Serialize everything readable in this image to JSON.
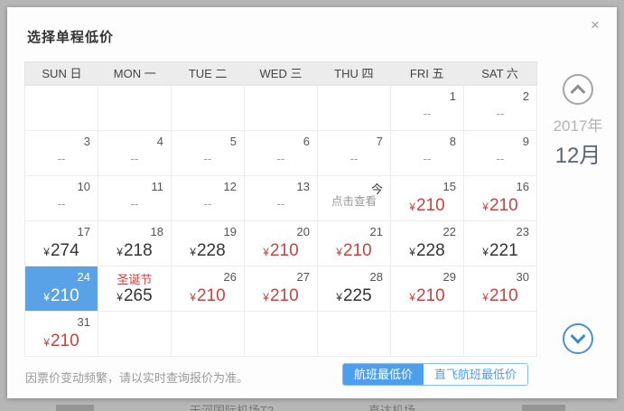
{
  "dialog": {
    "title": "选择单程低价",
    "close_icon": "×"
  },
  "calendar": {
    "day_headers": [
      "SUN 日",
      "MON 一",
      "TUE 二",
      "WED 三",
      "THU 四",
      "FRI 五",
      "SAT 六"
    ],
    "weeks": [
      [
        {
          "style": "empty"
        },
        {
          "style": "empty"
        },
        {
          "style": "empty"
        },
        {
          "style": "empty"
        },
        {
          "style": "empty"
        },
        {
          "day": "1",
          "value": "--",
          "style": "dash"
        },
        {
          "day": "2",
          "value": "--",
          "style": "dash"
        }
      ],
      [
        {
          "day": "3",
          "value": "--",
          "style": "dash"
        },
        {
          "day": "4",
          "value": "--",
          "style": "dash"
        },
        {
          "day": "5",
          "value": "--",
          "style": "dash"
        },
        {
          "day": "6",
          "value": "--",
          "style": "dash"
        },
        {
          "day": "7",
          "value": "--",
          "style": "dash"
        },
        {
          "day": "8",
          "value": "--",
          "style": "dash"
        },
        {
          "day": "9",
          "value": "--",
          "style": "dash"
        }
      ],
      [
        {
          "day": "10",
          "value": "--",
          "style": "dash"
        },
        {
          "day": "11",
          "value": "--",
          "style": "dash"
        },
        {
          "day": "12",
          "value": "--",
          "style": "dash"
        },
        {
          "day": "13",
          "value": "--",
          "style": "dash"
        },
        {
          "day": "今",
          "value": "点击查看",
          "style": "today"
        },
        {
          "day": "15",
          "symbol": "¥",
          "value": "210",
          "style": "red"
        },
        {
          "day": "16",
          "symbol": "¥",
          "value": "210",
          "style": "red"
        }
      ],
      [
        {
          "day": "17",
          "symbol": "¥",
          "value": "274",
          "style": "black"
        },
        {
          "day": "18",
          "symbol": "¥",
          "value": "218",
          "style": "black"
        },
        {
          "day": "19",
          "symbol": "¥",
          "value": "228",
          "style": "black"
        },
        {
          "day": "20",
          "symbol": "¥",
          "value": "210",
          "style": "red"
        },
        {
          "day": "21",
          "symbol": "¥",
          "value": "210",
          "style": "red"
        },
        {
          "day": "22",
          "symbol": "¥",
          "value": "228",
          "style": "black"
        },
        {
          "day": "23",
          "symbol": "¥",
          "value": "221",
          "style": "black"
        }
      ],
      [
        {
          "day": "24",
          "symbol": "¥",
          "value": "210",
          "style": "selected"
        },
        {
          "day": "圣诞节",
          "symbol": "¥",
          "value": "265",
          "style": "holiday"
        },
        {
          "day": "26",
          "symbol": "¥",
          "value": "210",
          "style": "red"
        },
        {
          "day": "27",
          "symbol": "¥",
          "value": "210",
          "style": "red"
        },
        {
          "day": "28",
          "symbol": "¥",
          "value": "225",
          "style": "black"
        },
        {
          "day": "29",
          "symbol": "¥",
          "value": "210",
          "style": "red"
        },
        {
          "day": "30",
          "symbol": "¥",
          "value": "210",
          "style": "red"
        }
      ],
      [
        {
          "day": "31",
          "symbol": "¥",
          "value": "210",
          "style": "red"
        },
        {
          "style": "empty"
        },
        {
          "style": "empty"
        },
        {
          "style": "empty"
        },
        {
          "style": "empty"
        },
        {
          "style": "empty"
        },
        {
          "style": "empty"
        }
      ]
    ]
  },
  "side_panel": {
    "year": "2017年",
    "month": "12月"
  },
  "footer": {
    "note": "因票价变动频繁，请以实时查询报价为准。",
    "buttons": [
      {
        "label": "航班最低价",
        "active": true
      },
      {
        "label": "直飞航班最低价",
        "active": false
      }
    ]
  },
  "background": {
    "fragments": [
      "天河国际机场T2",
      "直达机场"
    ]
  },
  "colors": {
    "accent_blue": "#5aa2e8",
    "toggle_blue": "#4d9fee",
    "price_red": "#c04543",
    "price_black": "#333333",
    "holiday_red": "#d04040"
  }
}
